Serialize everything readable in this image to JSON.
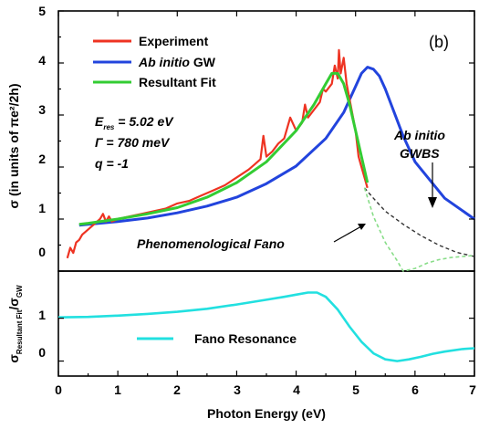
{
  "chart_data": [
    {
      "type": "line",
      "panel_label": "(b)",
      "xlim": [
        0,
        7
      ],
      "ylim": [
        0,
        5
      ],
      "ylabel": "σ (in units of πe²/2h)",
      "yticks": [
        "0",
        "1",
        "2",
        "3",
        "4",
        "5"
      ],
      "legend": {
        "placement": "top-left",
        "items": [
          "Experiment",
          "Ab initio GW",
          "Resultant Fit"
        ],
        "italic_part": [
          "",
          "Ab initio",
          ""
        ],
        "plain_part": [
          "Experiment",
          " GW",
          "Resultant Fit"
        ]
      },
      "params": {
        "eres": "E",
        "eres_sub": "res",
        "eres_val": " = 5.02 eV",
        "gamma": "Γ = 780 meV",
        "q": "q = -1"
      },
      "annotations": {
        "fano": "Phenomenological Fano",
        "gwbs_1": "Ab initio",
        "gwbs_2": "GWBS"
      },
      "colors": {
        "experiment": "#ee3322",
        "gw": "#2244dd",
        "fit": "#33cc33",
        "gwbs_dashed": "#333333",
        "fano_dashed": "#88dd88"
      },
      "series": [
        {
          "name": "Experiment",
          "x": [
            0.15,
            0.2,
            0.25,
            0.3,
            0.35,
            0.4,
            0.5,
            0.6,
            0.7,
            0.75,
            0.8,
            0.85,
            0.9,
            1.0,
            1.2,
            1.4,
            1.6,
            1.8,
            2.0,
            2.2,
            2.4,
            2.6,
            2.8,
            3.0,
            3.2,
            3.3,
            3.4,
            3.45,
            3.5,
            3.6,
            3.7,
            3.8,
            3.9,
            4.0,
            4.1,
            4.15,
            4.2,
            4.3,
            4.4,
            4.45,
            4.5,
            4.6,
            4.65,
            4.7,
            4.72,
            4.75,
            4.8,
            4.85,
            4.9,
            5.0,
            5.05,
            5.1,
            5.15,
            5.2
          ],
          "y": [
            0.25,
            0.45,
            0.35,
            0.55,
            0.6,
            0.7,
            0.8,
            0.9,
            1.0,
            1.1,
            0.95,
            1.05,
            0.95,
            1.0,
            1.05,
            1.1,
            1.15,
            1.2,
            1.3,
            1.35,
            1.45,
            1.55,
            1.65,
            1.8,
            1.95,
            2.05,
            2.15,
            2.6,
            2.2,
            2.3,
            2.45,
            2.55,
            2.95,
            2.7,
            2.85,
            3.2,
            2.95,
            3.1,
            3.25,
            3.5,
            3.45,
            3.6,
            3.95,
            3.7,
            4.25,
            3.8,
            4.1,
            3.6,
            3.3,
            2.7,
            2.2,
            2.0,
            1.8,
            1.6
          ]
        },
        {
          "name": "Ab initio GW",
          "x": [
            0.35,
            0.5,
            1.0,
            1.5,
            2.0,
            2.5,
            3.0,
            3.5,
            4.0,
            4.5,
            4.8,
            5.0,
            5.1,
            5.2,
            5.3,
            5.4,
            5.5,
            5.6,
            5.8,
            6.0,
            6.5,
            7.0
          ],
          "y": [
            0.88,
            0.9,
            0.95,
            1.02,
            1.12,
            1.25,
            1.42,
            1.68,
            2.02,
            2.55,
            3.05,
            3.55,
            3.8,
            3.92,
            3.88,
            3.75,
            3.5,
            3.2,
            2.6,
            2.1,
            1.4,
            1.0
          ]
        },
        {
          "name": "Resultant Fit",
          "x": [
            0.35,
            0.5,
            1.0,
            1.5,
            2.0,
            2.5,
            3.0,
            3.5,
            4.0,
            4.3,
            4.5,
            4.6,
            4.7,
            4.8,
            4.9,
            5.0,
            5.1,
            5.2
          ],
          "y": [
            0.9,
            0.92,
            1.0,
            1.1,
            1.22,
            1.42,
            1.7,
            2.1,
            2.7,
            3.2,
            3.6,
            3.8,
            3.8,
            3.6,
            3.2,
            2.7,
            2.2,
            1.7
          ]
        },
        {
          "name": "Ab initio GWBS",
          "x": [
            5.15,
            5.3,
            5.5,
            5.8,
            6.1,
            6.4,
            6.7,
            7.0
          ],
          "y": [
            1.6,
            1.4,
            1.15,
            0.9,
            0.68,
            0.5,
            0.36,
            0.28
          ]
        },
        {
          "name": "Phenomenological Fano",
          "x": [
            5.15,
            5.3,
            5.5,
            5.7,
            5.8,
            6.0,
            6.2,
            6.4,
            6.6,
            6.8,
            7.0
          ],
          "y": [
            1.6,
            1.05,
            0.55,
            0.2,
            0.0,
            0.05,
            0.15,
            0.22,
            0.26,
            0.28,
            0.3
          ]
        }
      ]
    },
    {
      "type": "line",
      "xlim": [
        0,
        7
      ],
      "ylim": [
        -0.35,
        2.1
      ],
      "xlabel": "Photon Energy (eV)",
      "ylabel_main": "σ",
      "ylabel_sub1": "Resultant Fit",
      "ylabel_sep": "/σ",
      "ylabel_sub2": "GW",
      "xticks": [
        "0",
        "1",
        "2",
        "3",
        "4",
        "5",
        "6",
        "7"
      ],
      "yticks": [
        "0",
        "1"
      ],
      "legend_label": "Fano Resonance",
      "colors": {
        "fano": "#22e0e0"
      },
      "series": [
        {
          "name": "Fano Resonance",
          "x": [
            0.0,
            0.5,
            1.0,
            1.5,
            2.0,
            2.5,
            3.0,
            3.5,
            3.8,
            4.0,
            4.2,
            4.35,
            4.5,
            4.7,
            4.9,
            5.1,
            5.3,
            5.5,
            5.7,
            5.9,
            6.1,
            6.3,
            6.5,
            6.8,
            7.0
          ],
          "y": [
            1.02,
            1.03,
            1.06,
            1.1,
            1.15,
            1.22,
            1.32,
            1.43,
            1.5,
            1.55,
            1.6,
            1.6,
            1.5,
            1.2,
            0.8,
            0.45,
            0.18,
            0.04,
            0.0,
            0.04,
            0.1,
            0.17,
            0.22,
            0.28,
            0.3
          ]
        }
      ]
    }
  ]
}
